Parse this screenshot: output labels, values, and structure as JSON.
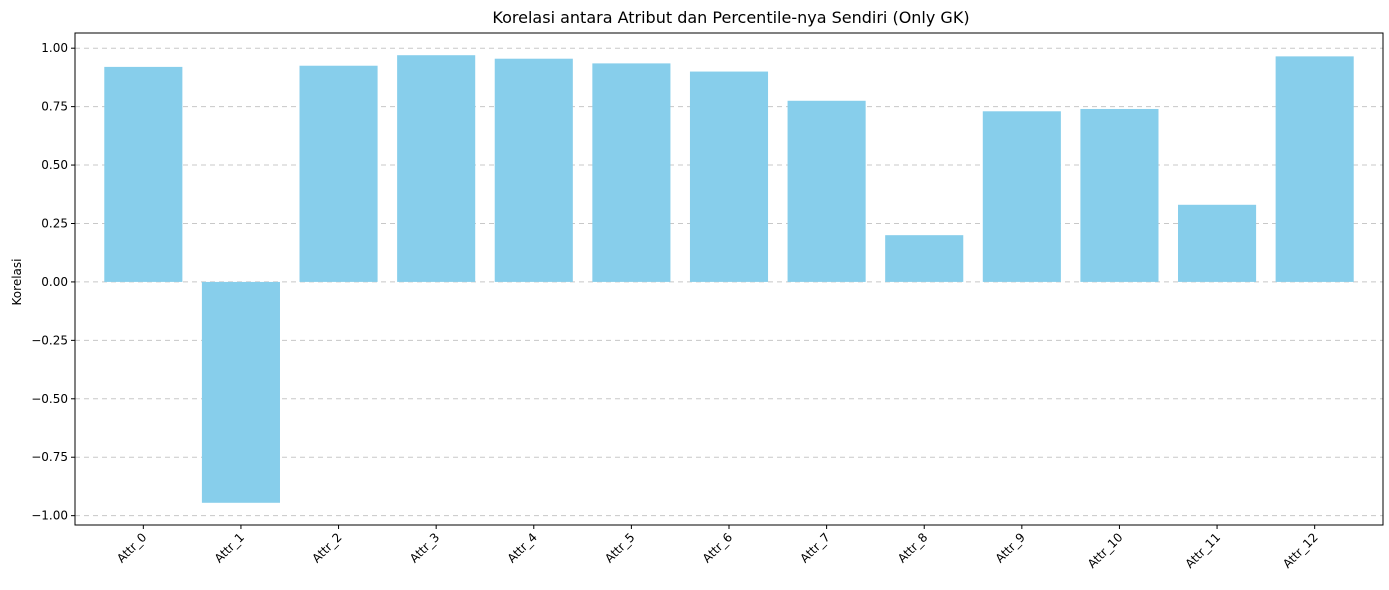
{
  "chart_data": {
    "type": "bar",
    "title": "Korelasi antara Atribut dan Percentile-nya Sendiri (Only GK)",
    "xlabel": "",
    "ylabel": "Korelasi",
    "categories": [
      "Attr_0",
      "Attr_1",
      "Attr_2",
      "Attr_3",
      "Attr_4",
      "Attr_5",
      "Attr_6",
      "Attr_7",
      "Attr_8",
      "Attr_9",
      "Attr_10",
      "Attr_11",
      "Attr_12"
    ],
    "values": [
      0.92,
      -0.945,
      0.925,
      0.97,
      0.955,
      0.935,
      0.9,
      0.775,
      0.2,
      0.73,
      0.74,
      0.33,
      0.965
    ],
    "ylim": [
      -1.04,
      1.065
    ],
    "yticks": [
      -1.0,
      -0.75,
      -0.5,
      -0.25,
      0.0,
      0.25,
      0.5,
      0.75,
      1.0
    ],
    "ytick_labels": [
      "−1.00",
      "−0.75",
      "−0.50",
      "−0.25",
      "0.00",
      "0.25",
      "0.50",
      "0.75",
      "1.00"
    ],
    "grid": "y-axis dashed",
    "bar_color": "#87ceeb"
  }
}
